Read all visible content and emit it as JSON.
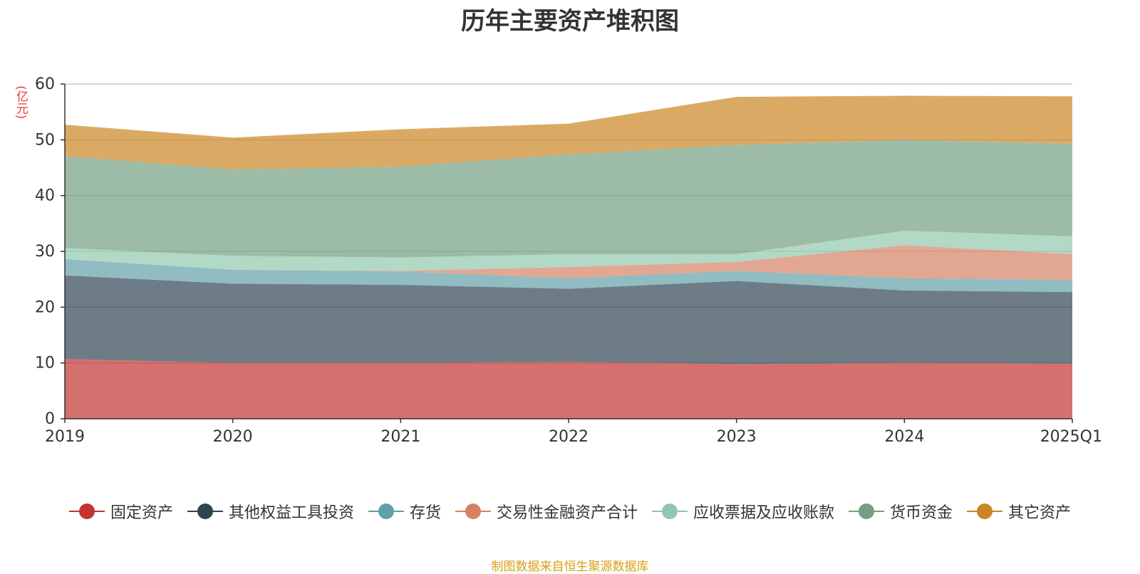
{
  "chart_data": {
    "type": "area",
    "stacked": true,
    "title": "历年主要资产堆积图",
    "unit_label": "(亿元)",
    "categories": [
      "2019",
      "2020",
      "2021",
      "2022",
      "2023",
      "2024",
      "2025Q1"
    ],
    "ylim": [
      0,
      60
    ],
    "yticks": [
      "0",
      "10",
      "20",
      "30",
      "40",
      "50",
      "60"
    ],
    "grid": true,
    "legend_position": "bottom",
    "series": [
      {
        "name": "固定资产",
        "color": "#c23531",
        "values": [
          10.7,
          10.0,
          10.0,
          10.2,
          9.8,
          10.0,
          9.9
        ]
      },
      {
        "name": "其他权益工具投资",
        "color": "#2f4554",
        "values": [
          15.0,
          14.2,
          14.0,
          13.1,
          14.9,
          13.0,
          12.8
        ]
      },
      {
        "name": "存货",
        "color": "#61a0a8",
        "values": [
          2.9,
          2.5,
          2.4,
          1.9,
          1.8,
          2.2,
          2.2
        ]
      },
      {
        "name": "交易性金融资产合计",
        "color": "#d48265",
        "values": [
          0.0,
          0.0,
          0.1,
          2.0,
          1.6,
          5.9,
          4.6
        ]
      },
      {
        "name": "应收票据及应收账款",
        "color": "#91c7ae",
        "values": [
          2.0,
          2.5,
          2.4,
          2.3,
          1.4,
          2.6,
          3.2
        ]
      },
      {
        "name": "货币资金",
        "color": "#749f83",
        "values": [
          16.5,
          15.5,
          16.3,
          17.9,
          19.6,
          16.3,
          16.6
        ]
      },
      {
        "name": "其它资产",
        "color": "#ca8622",
        "values": [
          5.6,
          5.7,
          6.7,
          5.5,
          8.6,
          7.9,
          8.5
        ]
      }
    ]
  },
  "source_note": "制图数据来自恒生聚源数据库"
}
